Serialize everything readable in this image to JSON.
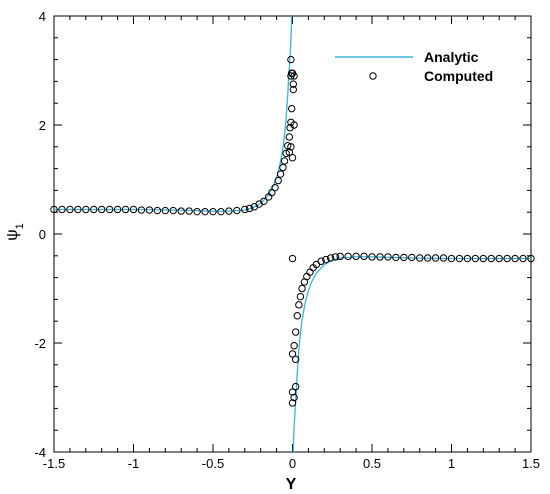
{
  "chart_data": {
    "type": "line",
    "xlabel": "Y",
    "ylabel": "ψ",
    "ylabel_subscript": "1",
    "xlim": [
      -1.5,
      1.5
    ],
    "ylim": [
      -4,
      4
    ],
    "x_ticks": [
      -1.5,
      -1,
      -0.5,
      0,
      0.5,
      1,
      1.5
    ],
    "x_tick_labels": [
      "-1.5",
      "-1",
      "-0.5",
      "0",
      "0.5",
      "1",
      "1.5"
    ],
    "y_ticks": [
      -4,
      -2,
      0,
      2,
      4
    ],
    "y_tick_labels": [
      "-4",
      "-2",
      "0",
      "2",
      "4"
    ],
    "grid": false,
    "legend_position": "top-right",
    "series": [
      {
        "name": "Analytic",
        "style": "line",
        "color": "#3cb4d8",
        "segments": [
          {
            "x": [
              -1.5,
              -1.25,
              -1.0,
              -0.75,
              -0.5,
              -0.4,
              -0.3,
              -0.25,
              -0.2,
              -0.15,
              -0.12,
              -0.1,
              -0.08,
              -0.06,
              -0.05,
              -0.04,
              -0.03,
              -0.025,
              -0.02,
              -0.015,
              -0.01,
              -0.008,
              -0.006,
              -0.005
            ],
            "y": [
              0.45,
              0.45,
              0.45,
              0.44,
              0.42,
              0.42,
              0.44,
              0.48,
              0.56,
              0.72,
              0.88,
              1.04,
              1.26,
              1.58,
              1.82,
              2.12,
              2.55,
              2.82,
              3.05,
              3.3,
              3.55,
              3.7,
              3.88,
              4.0
            ]
          },
          {
            "x": [
              0.005,
              0.006,
              0.008,
              0.01,
              0.015,
              0.02,
              0.025,
              0.03,
              0.04,
              0.05,
              0.06,
              0.08,
              0.1,
              0.12,
              0.15,
              0.2,
              0.25,
              0.3,
              0.4,
              0.5,
              0.75,
              1.0,
              1.25,
              1.5
            ],
            "y": [
              -4.0,
              -3.88,
              -3.7,
              -3.55,
              -3.3,
              -3.05,
              -2.82,
              -2.55,
              -2.12,
              -1.82,
              -1.58,
              -1.26,
              -1.04,
              -0.88,
              -0.72,
              -0.56,
              -0.48,
              -0.44,
              -0.42,
              -0.42,
              -0.44,
              -0.45,
              -0.45,
              -0.45
            ]
          }
        ]
      },
      {
        "name": "Computed",
        "style": "markers",
        "marker": "circle",
        "x": [
          -1.5,
          -1.45,
          -1.4,
          -1.35,
          -1.3,
          -1.25,
          -1.2,
          -1.15,
          -1.1,
          -1.05,
          -1.0,
          -0.95,
          -0.9,
          -0.85,
          -0.8,
          -0.75,
          -0.7,
          -0.65,
          -0.6,
          -0.55,
          -0.5,
          -0.45,
          -0.4,
          -0.35,
          -0.3,
          -0.27,
          -0.24,
          -0.21,
          -0.18,
          -0.15,
          -0.13,
          -0.11,
          -0.09,
          -0.075,
          -0.06,
          -0.05,
          -0.04,
          -0.03,
          -0.02,
          -0.015,
          -0.01,
          -0.005,
          0.005,
          0.01,
          -0.02,
          -0.01,
          0.0,
          0.01,
          -0.01,
          0.0,
          0.005,
          -0.005,
          -0.01,
          0.0,
          0.01,
          0.02,
          0.02,
          0.0,
          0.0,
          0.01,
          0.02,
          0.03,
          0.04,
          0.05,
          0.06,
          0.075,
          0.09,
          0.11,
          0.13,
          0.15,
          0.18,
          0.21,
          0.24,
          0.27,
          0.3,
          0.35,
          0.4,
          0.45,
          0.5,
          0.55,
          0.6,
          0.65,
          0.7,
          0.75,
          0.8,
          0.85,
          0.9,
          0.95,
          1.0,
          1.05,
          1.1,
          1.15,
          1.2,
          1.25,
          1.3,
          1.35,
          1.4,
          1.45,
          1.5,
          0.0
        ],
        "y": [
          0.45,
          0.45,
          0.45,
          0.45,
          0.45,
          0.45,
          0.45,
          0.45,
          0.45,
          0.45,
          0.45,
          0.44,
          0.44,
          0.43,
          0.43,
          0.43,
          0.42,
          0.42,
          0.41,
          0.41,
          0.41,
          0.41,
          0.42,
          0.43,
          0.45,
          0.47,
          0.5,
          0.55,
          0.6,
          0.68,
          0.76,
          0.85,
          0.98,
          1.1,
          1.22,
          1.34,
          1.48,
          1.62,
          1.78,
          1.95,
          2.05,
          2.3,
          2.65,
          2.9,
          1.5,
          1.6,
          1.4,
          2.0,
          3.2,
          2.95,
          2.75,
          2.95,
          2.9,
          -2.9,
          -3.0,
          -2.8,
          -2.3,
          -3.1,
          -2.2,
          -2.05,
          -1.8,
          -1.5,
          -1.3,
          -1.15,
          -1.0,
          -0.88,
          -0.78,
          -0.7,
          -0.62,
          -0.56,
          -0.5,
          -0.47,
          -0.44,
          -0.42,
          -0.41,
          -0.41,
          -0.41,
          -0.41,
          -0.42,
          -0.42,
          -0.42,
          -0.43,
          -0.43,
          -0.43,
          -0.44,
          -0.44,
          -0.44,
          -0.44,
          -0.45,
          -0.45,
          -0.45,
          -0.45,
          -0.45,
          -0.45,
          -0.45,
          -0.45,
          -0.45,
          -0.45,
          -0.45,
          -0.45
        ]
      }
    ]
  }
}
